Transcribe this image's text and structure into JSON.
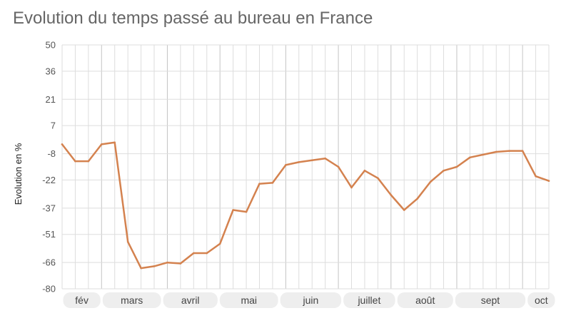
{
  "chart_data": {
    "type": "line",
    "title": "Evolution du temps passé au bureau en France",
    "xlabel": "",
    "ylabel": "Evolution en %",
    "ylim": [
      -80,
      50
    ],
    "yticks": [
      50,
      36,
      21,
      7,
      -8,
      -22,
      -37,
      -51,
      -66,
      -80
    ],
    "grid": true,
    "colors": {
      "line": "#D4824F",
      "grid": "#dddddd",
      "pill": "#eeeeee"
    },
    "months": [
      {
        "label": "fév",
        "start": 0,
        "end": 3
      },
      {
        "label": "mars",
        "start": 3,
        "end": 7.6
      },
      {
        "label": "avril",
        "start": 7.6,
        "end": 11.9
      },
      {
        "label": "mai",
        "start": 11.9,
        "end": 16.5
      },
      {
        "label": "juin",
        "start": 16.5,
        "end": 21.3
      },
      {
        "label": "juillet",
        "start": 21.3,
        "end": 25.4
      },
      {
        "label": "août",
        "start": 25.4,
        "end": 29.8
      },
      {
        "label": "sept",
        "start": 29.8,
        "end": 35.3
      },
      {
        "label": "oct",
        "start": 35.3,
        "end": 39.5
      }
    ],
    "series": [
      {
        "values": [
          -3,
          -12,
          -12,
          -3,
          -2,
          -55,
          -69,
          -68,
          -66,
          -66.5,
          -61,
          -61,
          -56,
          -38,
          -39,
          -24,
          -23.5,
          -14,
          -12.5,
          -11.5,
          -10.5,
          -15,
          -26,
          -17,
          -21,
          -30,
          -38,
          -32,
          -23,
          -17,
          -15,
          -10,
          -8.5,
          -7,
          -6.5,
          -6.5,
          -20,
          -22.5
        ]
      }
    ]
  }
}
